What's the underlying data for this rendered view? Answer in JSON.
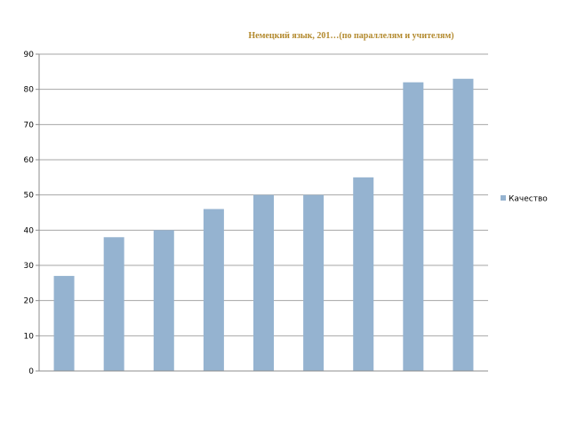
{
  "chart_data": {
    "type": "bar",
    "title": "Немецкий язык, 201…(по параллелям и учителям)",
    "title_color": "#b38a2e",
    "categories": [
      "",
      "",
      "",
      "",
      "",
      "",
      "",
      "",
      ""
    ],
    "series": [
      {
        "name": "Качество",
        "color": "#95b3d0",
        "values": [
          27,
          38,
          40,
          46,
          50,
          50,
          55,
          82,
          83
        ]
      }
    ],
    "xlabel": "",
    "ylabel": "",
    "ylim": [
      0,
      90
    ],
    "yticks": [
      0,
      10,
      20,
      30,
      40,
      50,
      60,
      70,
      80,
      90
    ],
    "grid": true,
    "gridline_color": "#a6a6a6",
    "legend_position": "right"
  }
}
